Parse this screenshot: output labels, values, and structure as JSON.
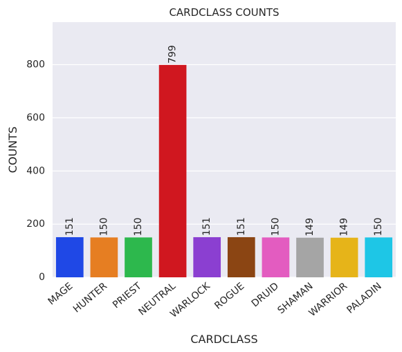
{
  "chart_data": {
    "type": "bar",
    "title": "CARDCLASS COUNTS",
    "xlabel": "CARDCLASS",
    "ylabel": "COUNTS",
    "categories": [
      "MAGE",
      "HUNTER",
      "PRIEST",
      "NEUTRAL",
      "WARLOCK",
      "ROGUE",
      "DRUID",
      "SHAMAN",
      "WARRIOR",
      "PALADIN"
    ],
    "values": [
      151,
      150,
      150,
      799,
      151,
      151,
      150,
      149,
      149,
      150
    ],
    "data_labels": [
      "151",
      "150",
      "150",
      "799",
      "151",
      "151",
      "150",
      "149",
      "149",
      "150"
    ],
    "colors": [
      "#1f48e6",
      "#e67e22",
      "#2db84d",
      "#d0171f",
      "#8b3fd1",
      "#8b4513",
      "#e35cc0",
      "#a5a5a5",
      "#e6b419",
      "#1ec6e6"
    ],
    "ylim": [
      0,
      960
    ],
    "yticks": [
      0,
      200,
      400,
      600,
      800
    ],
    "ytick_labels": [
      "0",
      "200",
      "400",
      "600",
      "800"
    ],
    "grid": true,
    "background": "#eaeaf2",
    "gridline_color": "#ffffff"
  }
}
